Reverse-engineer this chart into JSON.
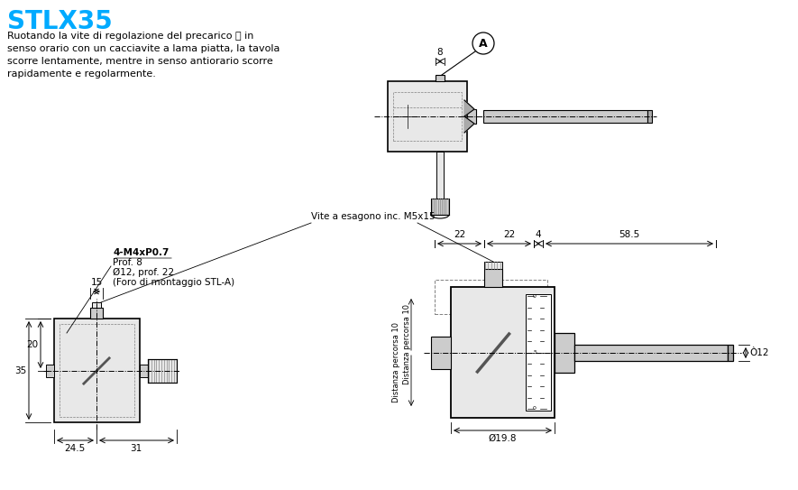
{
  "title": "STLX35",
  "title_color": "#00AAFF",
  "bg_color": "#FFFFFF",
  "body_text_lines": [
    "Ruotando la vite di regolazione del precarico Ⓐ in",
    "senso orario con un cacciavite a lama piatta, la tavola",
    "scorre lentamente, mentre in senso antiorario scorre",
    "rapidamente e regolarmente."
  ],
  "dim_8": "8",
  "label_A": "A",
  "dim_22a": "22",
  "dim_22b": "22",
  "dim_4": "4",
  "dim_58_5": "58.5",
  "dim_15": "15",
  "dim_35": "35",
  "dim_20": "20",
  "dim_24_5": "24.5",
  "dim_31": "31",
  "label_4m": "4-M4xP0.7",
  "label_prof8": "Prof. 8",
  "label_o12": "Ø12, prof. 22",
  "label_foro": "(Foro di montaggio STL-A)",
  "label_vite": "Vite a esagono inc. M5x15",
  "dim_19_8": "Ø19.8",
  "dim_12": "Ò12",
  "label_dist1": "Distanza percorsa 10",
  "label_dist2": "Distanza percorsa 10",
  "fill_light": "#E8E8E8",
  "fill_mid": "#CCCCCC",
  "fill_dark": "#AAAAAA",
  "fill_white": "#FFFFFF",
  "color_gray": "#888888",
  "color_darkgray": "#555555"
}
